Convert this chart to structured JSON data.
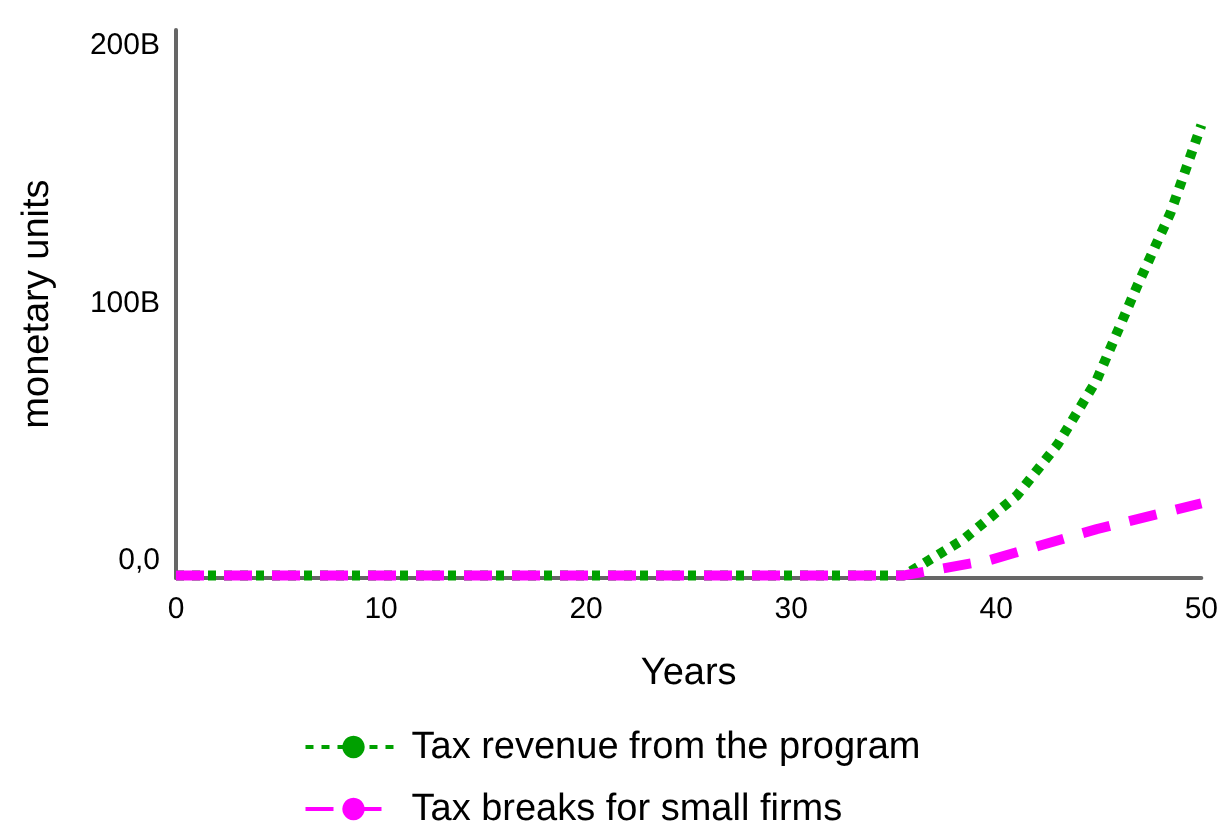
{
  "chart_data": {
    "type": "line",
    "xlabel": "Years",
    "ylabel": "monetary units",
    "xlim": [
      0,
      50
    ],
    "xticks": [
      0,
      10,
      20,
      30,
      40,
      50
    ],
    "ylim": [
      -7000000000,
      206000000000
    ],
    "yticks": [
      {
        "value": 0,
        "label": "0,0"
      },
      {
        "value": 100000000000,
        "label": "100B"
      },
      {
        "value": 200000000000,
        "label": "200B"
      }
    ],
    "grid": false,
    "legend": "bottom",
    "marker": "none",
    "series": [
      {
        "name": "Tax revenue from the program",
        "color": "#00a000",
        "line_style": "dotted",
        "x": [
          0,
          35.5,
          38.4,
          41,
          43,
          44.9,
          46.9,
          48.5,
          50
        ],
        "values": [
          -6000000000,
          -6000000000,
          8000000000,
          25000000000,
          45000000000,
          70000000000,
          107000000000,
          135000000000,
          169000000000
        ]
      },
      {
        "name": "Tax breaks for small firms",
        "color": "#ff00ff",
        "line_style": "dashed",
        "x": [
          0,
          35.5,
          39.7,
          44.9,
          50
        ],
        "values": [
          -6000000000,
          -6000000000,
          0,
          12000000000,
          22000000000
        ]
      }
    ]
  }
}
